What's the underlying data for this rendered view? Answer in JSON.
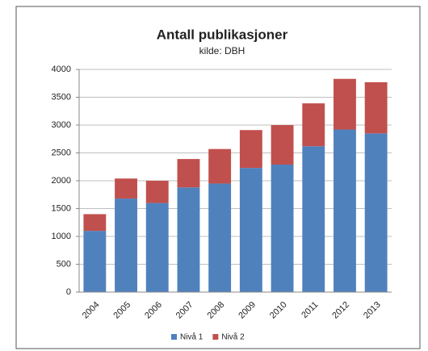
{
  "chart_data": {
    "type": "stacked_bar",
    "title": "Antall publikasjoner",
    "subtitle": "kilde: DBH",
    "categories": [
      "2004",
      "2005",
      "2006",
      "2007",
      "2008",
      "2009",
      "2010",
      "2011",
      "2012",
      "2013"
    ],
    "series": [
      {
        "name": "Nivå 1",
        "color": "#4f81bd",
        "values": [
          1100,
          1680,
          1600,
          1880,
          1950,
          2230,
          2290,
          2620,
          2920,
          2850
        ]
      },
      {
        "name": "Nivå 2",
        "color": "#c0504d",
        "values": [
          300,
          360,
          400,
          510,
          620,
          680,
          710,
          770,
          910,
          920
        ]
      }
    ],
    "ylim": [
      0,
      4000
    ],
    "yticks": [
      0,
      500,
      1000,
      1500,
      2000,
      2500,
      3000,
      3500,
      4000
    ],
    "grid": true,
    "legend": "bottom"
  }
}
